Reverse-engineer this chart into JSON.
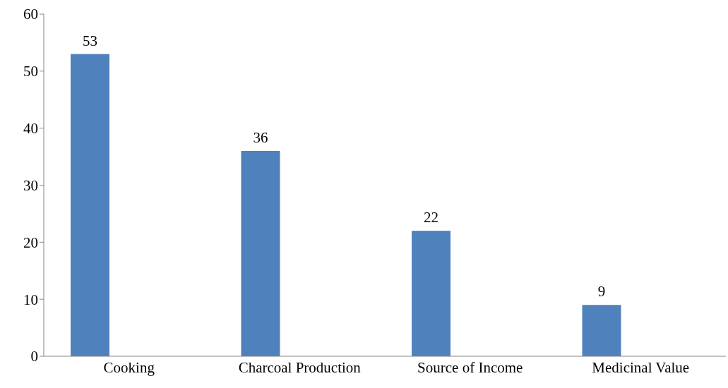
{
  "chart_data": {
    "type": "bar",
    "categories": [
      "Cooking",
      "Charcoal Production",
      "Source of Income",
      "Medicinal Value"
    ],
    "values": [
      53,
      36,
      22,
      9
    ],
    "color": "#4f81bd",
    "ylim": [
      0,
      60
    ],
    "yticks": [
      0,
      10,
      20,
      30,
      40,
      50,
      60
    ],
    "data_labels": true,
    "grid": false
  }
}
